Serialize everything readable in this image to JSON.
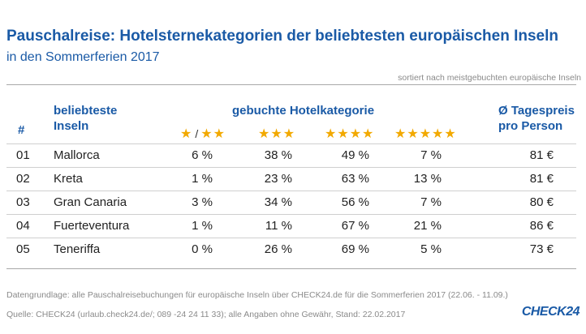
{
  "title": "Pauschalreise: Hotelsternekategorien der beliebtesten europäischen Inseln",
  "subtitle": "in den Sommerferien 2017",
  "sort_note": "sortiert nach meistgebuchten europäische Inseln",
  "chart_data": {
    "type": "table",
    "columns": {
      "num": "#",
      "islands": "beliebteste Inseln",
      "category": "gebuchte Hotelkategorie",
      "price": "Ø Tagespreis pro Person"
    },
    "star_headers": [
      {
        "stars": "★",
        "sep": "/",
        "stars2": "★★"
      },
      {
        "stars": "★★★"
      },
      {
        "stars": "★★★★"
      },
      {
        "stars": "★★★★★"
      }
    ],
    "rows": [
      {
        "num": "01",
        "name": "Mallorca",
        "s12": "6 %",
        "s3": "38 %",
        "s4": "49 %",
        "s5": "7 %",
        "price": "81 €"
      },
      {
        "num": "02",
        "name": "Kreta",
        "s12": "1 %",
        "s3": "23 %",
        "s4": "63 %",
        "s5": "13 %",
        "price": "81 €"
      },
      {
        "num": "03",
        "name": "Gran Canaria",
        "s12": "3 %",
        "s3": "34 %",
        "s4": "56 %",
        "s5": "7 %",
        "price": "80 €"
      },
      {
        "num": "04",
        "name": "Fuerteventura",
        "s12": "1 %",
        "s3": "11 %",
        "s4": "67 %",
        "s5": "21 %",
        "price": "86 €"
      },
      {
        "num": "05",
        "name": "Teneriffa",
        "s12": "0 %",
        "s3": "26 %",
        "s4": "69 %",
        "s5": "5 %",
        "price": "73 €"
      }
    ]
  },
  "footer": {
    "line1": "Datengrundlage: alle Pauschalreisebuchungen für europäische Inseln über CHECK24.de für die Sommerferien 2017 (22.06. - 11.09.)",
    "line2": "Quelle: CHECK24 (urlaub.check24.de/; 089 -24 24 11 33); alle Angaben ohne Gewähr, Stand: 22.02.2017",
    "logo": "CHECK24"
  },
  "colors": {
    "accent": "#1a5aa6",
    "star": "#f2a900"
  }
}
